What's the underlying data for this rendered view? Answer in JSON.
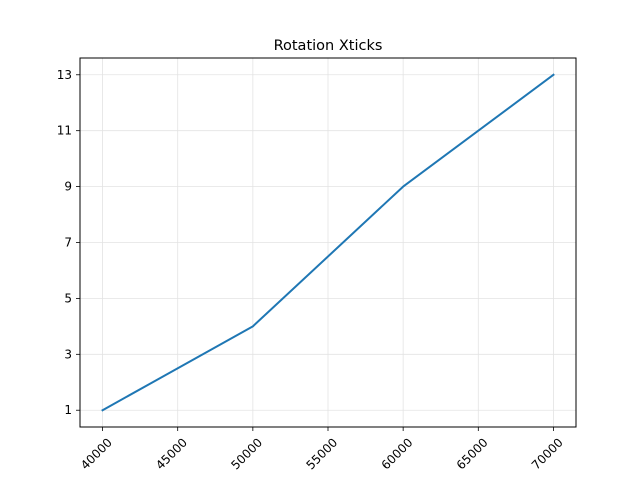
{
  "chart_data": {
    "type": "line",
    "title": "Rotation Xticks",
    "xlabel": "",
    "ylabel": "",
    "xlim": [
      38500,
      71500
    ],
    "ylim": [
      0.4,
      13.6
    ],
    "x_ticks": [
      40000,
      45000,
      50000,
      55000,
      60000,
      65000,
      70000
    ],
    "x_tick_labels": [
      "40000",
      "45000",
      "50000",
      "55000",
      "60000",
      "65000",
      "70000"
    ],
    "x_tick_rotation_deg": 45,
    "y_ticks": [
      1,
      3,
      5,
      7,
      9,
      11,
      13
    ],
    "y_tick_labels": [
      "1",
      "3",
      "5",
      "7",
      "9",
      "11",
      "13"
    ],
    "grid": true,
    "legend": "none",
    "series": [
      {
        "x": [
          40000,
          50000,
          60000,
          70000
        ],
        "y": [
          1,
          4,
          9,
          13
        ],
        "color": "#1f77b4"
      }
    ]
  }
}
